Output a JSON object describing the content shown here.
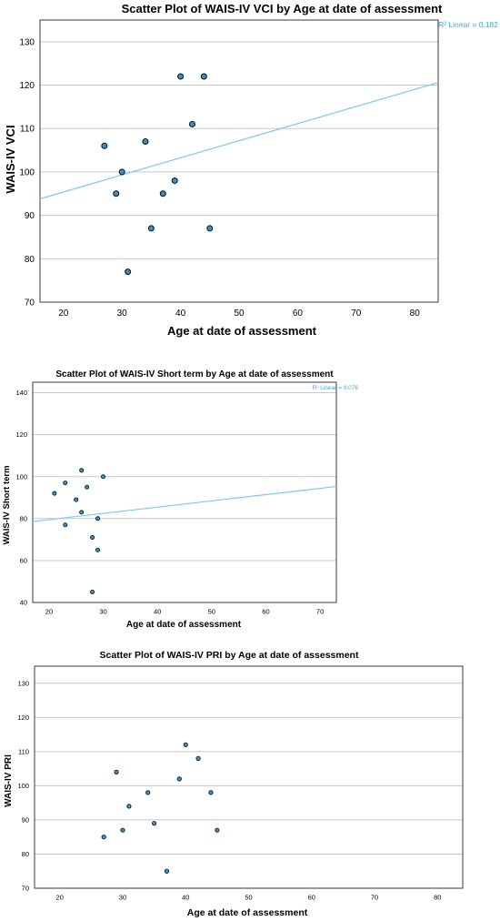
{
  "chart_data": [
    {
      "type": "scatter",
      "title": "Scatter Plot of WAIS-IV VCI by Age at date of assessment",
      "xlabel": "Age at date of assessment",
      "ylabel": "WAIS-IV VCI",
      "xlim": [
        16,
        84
      ],
      "ylim": [
        70,
        135
      ],
      "xticks": [
        20,
        30,
        40,
        50,
        60,
        70,
        80
      ],
      "yticks": [
        70,
        80,
        90,
        100,
        110,
        120,
        130
      ],
      "grid": "horizontal",
      "fit_line": {
        "label": "R² Linear = 0.182",
        "y_at_xmin": 93.8,
        "y_at_xmax": 120.6
      },
      "points": [
        {
          "x": 27,
          "y": 106
        },
        {
          "x": 29,
          "y": 95
        },
        {
          "x": 30,
          "y": 100
        },
        {
          "x": 31,
          "y": 77
        },
        {
          "x": 34,
          "y": 107
        },
        {
          "x": 35,
          "y": 87
        },
        {
          "x": 37,
          "y": 95
        },
        {
          "x": 39,
          "y": 98
        },
        {
          "x": 40,
          "y": 122
        },
        {
          "x": 42,
          "y": 111
        },
        {
          "x": 44,
          "y": 122
        },
        {
          "x": 45,
          "y": 87
        }
      ]
    },
    {
      "type": "scatter",
      "title": "Scatter Plot of WAIS-IV Short term by Age at date of assessment",
      "xlabel": "Age at date of assessment",
      "ylabel": "WAIS-IV Short term",
      "xlim": [
        17,
        73
      ],
      "ylim": [
        40,
        145
      ],
      "xticks": [
        20,
        30,
        40,
        50,
        60,
        70
      ],
      "yticks": [
        40,
        60,
        80,
        100,
        120,
        140
      ],
      "grid": "horizontal",
      "fit_line": {
        "label": "R² Linear = 0.076",
        "y_at_xmin": 78.6,
        "y_at_xmax": 95.3
      },
      "points": [
        {
          "x": 21,
          "y": 92
        },
        {
          "x": 23,
          "y": 97
        },
        {
          "x": 23,
          "y": 77
        },
        {
          "x": 25,
          "y": 89
        },
        {
          "x": 26,
          "y": 103
        },
        {
          "x": 26,
          "y": 83
        },
        {
          "x": 27,
          "y": 95
        },
        {
          "x": 28,
          "y": 71
        },
        {
          "x": 28,
          "y": 45
        },
        {
          "x": 29,
          "y": 80
        },
        {
          "x": 29,
          "y": 65
        },
        {
          "x": 30,
          "y": 100
        }
      ]
    },
    {
      "type": "scatter",
      "title": "Scatter Plot of WAIS-IV PRI by Age at date of assessment",
      "xlabel": "Age at date of assessment",
      "ylabel": "WAIS-IV PRI",
      "xlim": [
        16,
        84
      ],
      "ylim": [
        70,
        135
      ],
      "xticks": [
        20,
        30,
        40,
        50,
        60,
        70,
        80
      ],
      "yticks": [
        70,
        80,
        90,
        100,
        110,
        120,
        130
      ],
      "grid": "horizontal",
      "points": [
        {
          "x": 27,
          "y": 85
        },
        {
          "x": 29,
          "y": 104
        },
        {
          "x": 30,
          "y": 87
        },
        {
          "x": 31,
          "y": 94
        },
        {
          "x": 34,
          "y": 98
        },
        {
          "x": 35,
          "y": 89
        },
        {
          "x": 37,
          "y": 75
        },
        {
          "x": 39,
          "y": 102
        },
        {
          "x": 40,
          "y": 112
        },
        {
          "x": 42,
          "y": 108
        },
        {
          "x": 44,
          "y": 98
        },
        {
          "x": 45,
          "y": 87
        }
      ]
    }
  ]
}
